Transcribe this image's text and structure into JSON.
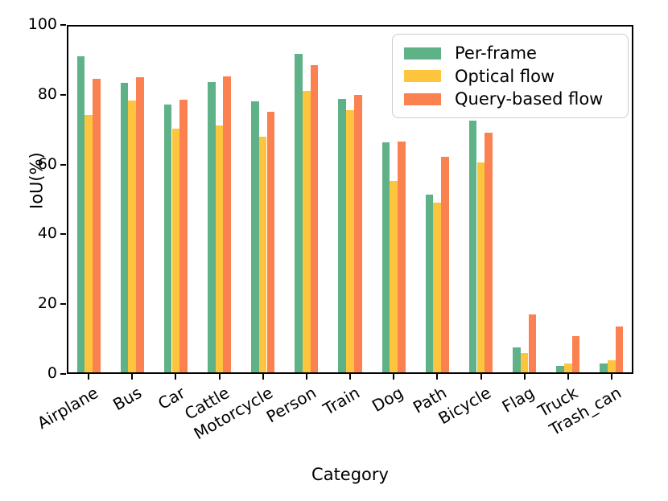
{
  "chart_data": {
    "type": "bar",
    "title": "",
    "xlabel": "Category",
    "ylabel": "IoU(%)",
    "ylim": [
      0,
      100
    ],
    "yticks": [
      0,
      20,
      40,
      60,
      80,
      100
    ],
    "grid": false,
    "legend_position": "upper right",
    "categories": [
      "Airplane",
      "Bus",
      "Car",
      "Cattle",
      "Motorcycle",
      "Person",
      "Train",
      "Dog",
      "Path",
      "Bicycle",
      "Flag",
      "Truck",
      "Trash_can"
    ],
    "series": [
      {
        "name": "Per-frame",
        "color": "#5fb287",
        "values": [
          91.1,
          83.5,
          77.2,
          83.6,
          78.1,
          91.7,
          78.9,
          66.3,
          51.4,
          72.7,
          7.5,
          2.3,
          3.0
        ]
      },
      {
        "name": "Optical flow",
        "color": "#fdc53e",
        "values": [
          74.3,
          78.4,
          70.3,
          71.2,
          67.9,
          81.2,
          75.6,
          55.3,
          49.0,
          60.6,
          5.9,
          3.0,
          4.0
        ]
      },
      {
        "name": "Query-based flow",
        "color": "#fc8150",
        "values": [
          84.6,
          85.1,
          78.6,
          85.2,
          75.1,
          88.6,
          80.0,
          66.5,
          62.2,
          69.2,
          17.1,
          10.8,
          13.5
        ]
      }
    ]
  }
}
